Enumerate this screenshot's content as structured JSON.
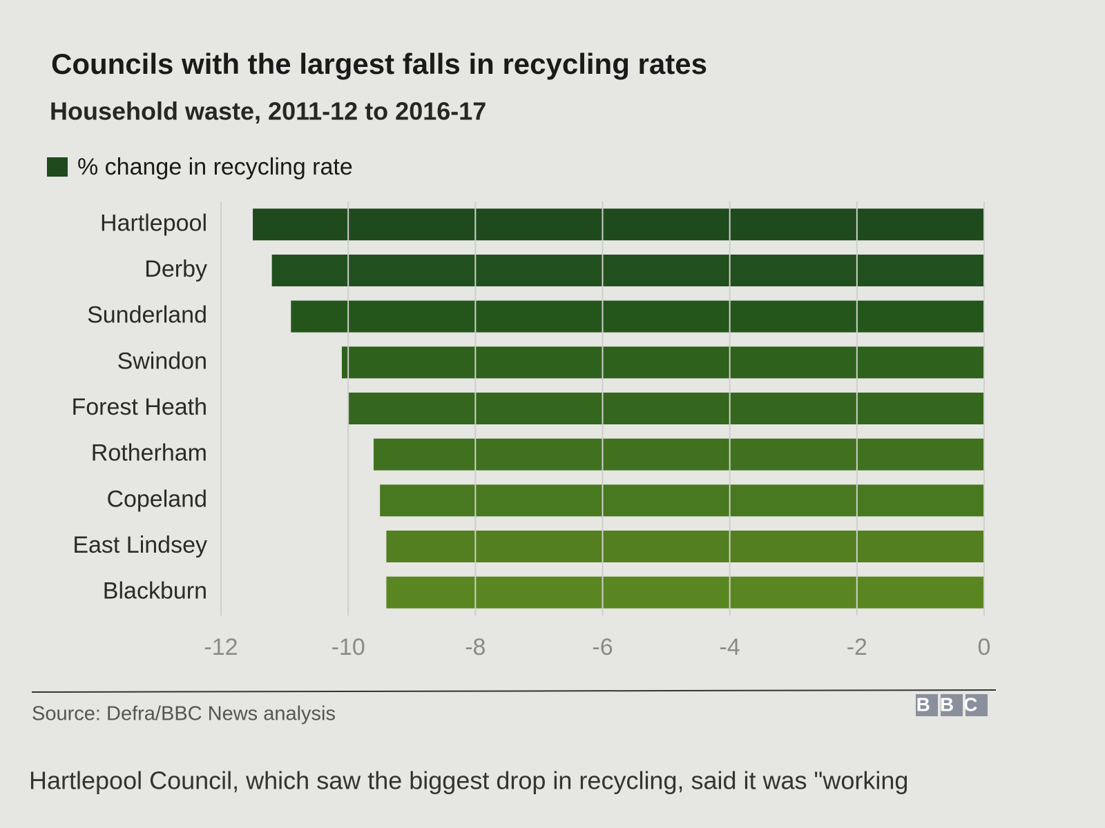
{
  "chart_data": {
    "type": "barh",
    "title": "Councils with the largest falls in recycling rates",
    "subtitle": "Household waste, 2011-12 to 2016-17",
    "categories": [
      "Hartlepool",
      "Derby",
      "Sunderland",
      "Swindon",
      "Forest Heath",
      "Rotherham",
      "Copeland",
      "East Lindsey",
      "Blackburn"
    ],
    "series": [
      {
        "name": "% change in recycling rate",
        "color": "#1e4a1e",
        "values": [
          -11.5,
          -11.2,
          -10.9,
          -10.1,
          -10.0,
          -9.6,
          -9.5,
          -9.4,
          -9.4
        ]
      }
    ],
    "colors": [
      "#1e4a1e",
      "#214f1d",
      "#24561c",
      "#2e611c",
      "#34671d",
      "#40711e",
      "#48781f",
      "#537f20",
      "#5a8622"
    ],
    "xlim": [
      -12,
      0
    ],
    "xticks": [
      -12,
      -10,
      -8,
      -6,
      -4,
      -2,
      0
    ],
    "grid": true,
    "source": "Source: Defra/BBC News analysis",
    "logo": "BBC"
  },
  "article": {
    "text": "Hartlepool Council, which saw the biggest drop in recycling, said it was \"working"
  }
}
